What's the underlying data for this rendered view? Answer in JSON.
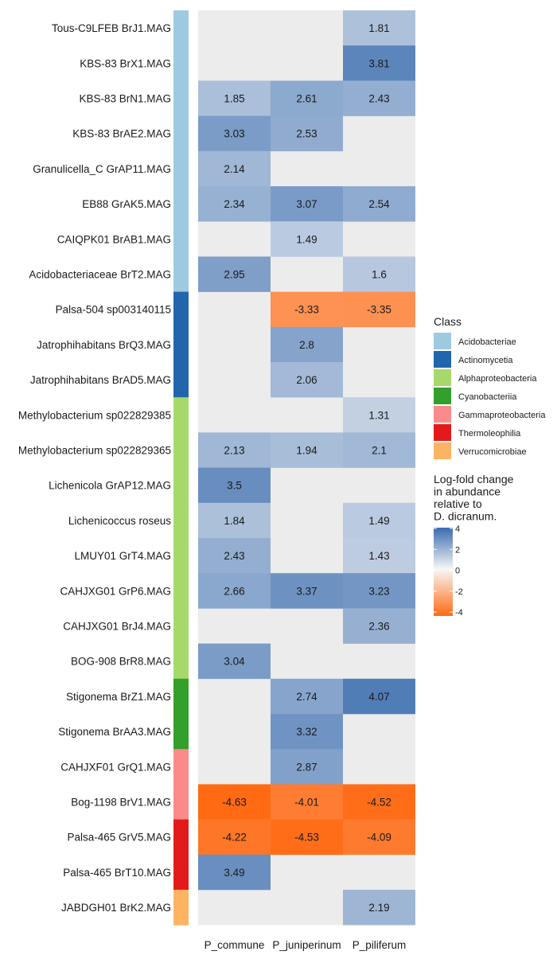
{
  "chart_data": {
    "type": "heatmap",
    "columns": [
      "P_commune",
      "P_juniperinum",
      "P_piliferum"
    ],
    "rows": [
      {
        "label": "Tous-C9LFEB BrJ1.MAG",
        "class": "Acidobacteriae",
        "values": [
          null,
          null,
          1.81
        ]
      },
      {
        "label": "KBS-83 BrX1.MAG",
        "class": "Acidobacteriae",
        "values": [
          null,
          null,
          3.81
        ]
      },
      {
        "label": "KBS-83 BrN1.MAG",
        "class": "Acidobacteriae",
        "values": [
          1.85,
          2.61,
          2.43
        ]
      },
      {
        "label": "KBS-83 BrAE2.MAG",
        "class": "Acidobacteriae",
        "values": [
          3.03,
          2.53,
          null
        ]
      },
      {
        "label": "Granulicella_C GrAP11.MAG",
        "class": "Acidobacteriae",
        "values": [
          2.14,
          null,
          null
        ]
      },
      {
        "label": "EB88 GrAK5.MAG",
        "class": "Acidobacteriae",
        "values": [
          2.34,
          3.07,
          2.54
        ]
      },
      {
        "label": "CAIQPK01 BrAB1.MAG",
        "class": "Acidobacteriae",
        "values": [
          null,
          1.49,
          null
        ]
      },
      {
        "label": "Acidobacteriaceae BrT2.MAG",
        "class": "Acidobacteriae",
        "values": [
          2.95,
          null,
          1.6
        ]
      },
      {
        "label": "Palsa-504 sp003140115",
        "class": "Actinomycetia",
        "values": [
          null,
          -3.33,
          -3.35
        ]
      },
      {
        "label": "Jatrophihabitans BrQ3.MAG",
        "class": "Actinomycetia",
        "values": [
          null,
          2.8,
          null
        ]
      },
      {
        "label": "Jatrophihabitans BrAD5.MAG",
        "class": "Actinomycetia",
        "values": [
          null,
          2.06,
          null
        ]
      },
      {
        "label": "Methylobacterium sp022829385",
        "class": "Alphaproteobacteria",
        "values": [
          null,
          null,
          1.31
        ]
      },
      {
        "label": "Methylobacterium sp022829365",
        "class": "Alphaproteobacteria",
        "values": [
          2.13,
          1.94,
          2.1
        ]
      },
      {
        "label": "Lichenicola GrAP12.MAG",
        "class": "Alphaproteobacteria",
        "values": [
          3.5,
          null,
          null
        ]
      },
      {
        "label": "Lichenicoccus roseus",
        "class": "Alphaproteobacteria",
        "values": [
          1.84,
          null,
          1.49
        ]
      },
      {
        "label": "LMUY01 GrT4.MAG",
        "class": "Alphaproteobacteria",
        "values": [
          2.43,
          null,
          1.43
        ]
      },
      {
        "label": "CAHJXG01 GrP6.MAG",
        "class": "Alphaproteobacteria",
        "values": [
          2.66,
          3.37,
          3.23
        ]
      },
      {
        "label": "CAHJXG01 BrJ4.MAG",
        "class": "Alphaproteobacteria",
        "values": [
          null,
          null,
          2.36
        ]
      },
      {
        "label": "BOG-908 BrR8.MAG",
        "class": "Alphaproteobacteria",
        "values": [
          3.04,
          null,
          null
        ]
      },
      {
        "label": "Stigonema BrZ1.MAG",
        "class": "Cyanobacteriia",
        "values": [
          null,
          2.74,
          4.07
        ]
      },
      {
        "label": "Stigonema BrAA3.MAG",
        "class": "Cyanobacteriia",
        "values": [
          null,
          3.32,
          null
        ]
      },
      {
        "label": "CAHJXF01 GrQ1.MAG",
        "class": "Gammaproteobacteria",
        "values": [
          null,
          2.87,
          null
        ]
      },
      {
        "label": "Bog-1198 BrV1.MAG",
        "class": "Gammaproteobacteria",
        "values": [
          -4.63,
          -4.01,
          -4.52
        ]
      },
      {
        "label": "Palsa-465 GrV5.MAG",
        "class": "Thermoleophilia",
        "values": [
          -4.22,
          -4.53,
          -4.09
        ]
      },
      {
        "label": "Palsa-465 BrT10.MAG",
        "class": "Thermoleophilia",
        "values": [
          3.49,
          null,
          null
        ]
      },
      {
        "label": "JABDGH01 BrK2.MAG",
        "class": "Verrucomicrobiae",
        "values": [
          null,
          null,
          2.19
        ]
      }
    ],
    "class_legend": {
      "title": "Class",
      "entries": [
        {
          "name": "Acidobacteriae",
          "color": "#9ecae1"
        },
        {
          "name": "Actinomycetia",
          "color": "#2166ac"
        },
        {
          "name": "Alphaproteobacteria",
          "color": "#a6d96a"
        },
        {
          "name": "Cyanobacteriia",
          "color": "#33a02c"
        },
        {
          "name": "Gammaproteobacteria",
          "color": "#fb8a8a"
        },
        {
          "name": "Thermoleophilia",
          "color": "#e31a1c"
        },
        {
          "name": "Verrucomicrobiae",
          "color": "#fdb462"
        }
      ]
    },
    "color_legend": {
      "title": [
        "Log-fold change",
        "in abundance",
        "relative to",
        "D. dicranum."
      ],
      "ticks": [
        4,
        2,
        0,
        -2,
        -4
      ],
      "range": [
        -4.63,
        4.07
      ],
      "low_color": "#ff6a13",
      "mid_color": "#f7f7f7",
      "high_color": "#3a6cae"
    },
    "missing_color": "#ececec",
    "legend_position": "right"
  }
}
